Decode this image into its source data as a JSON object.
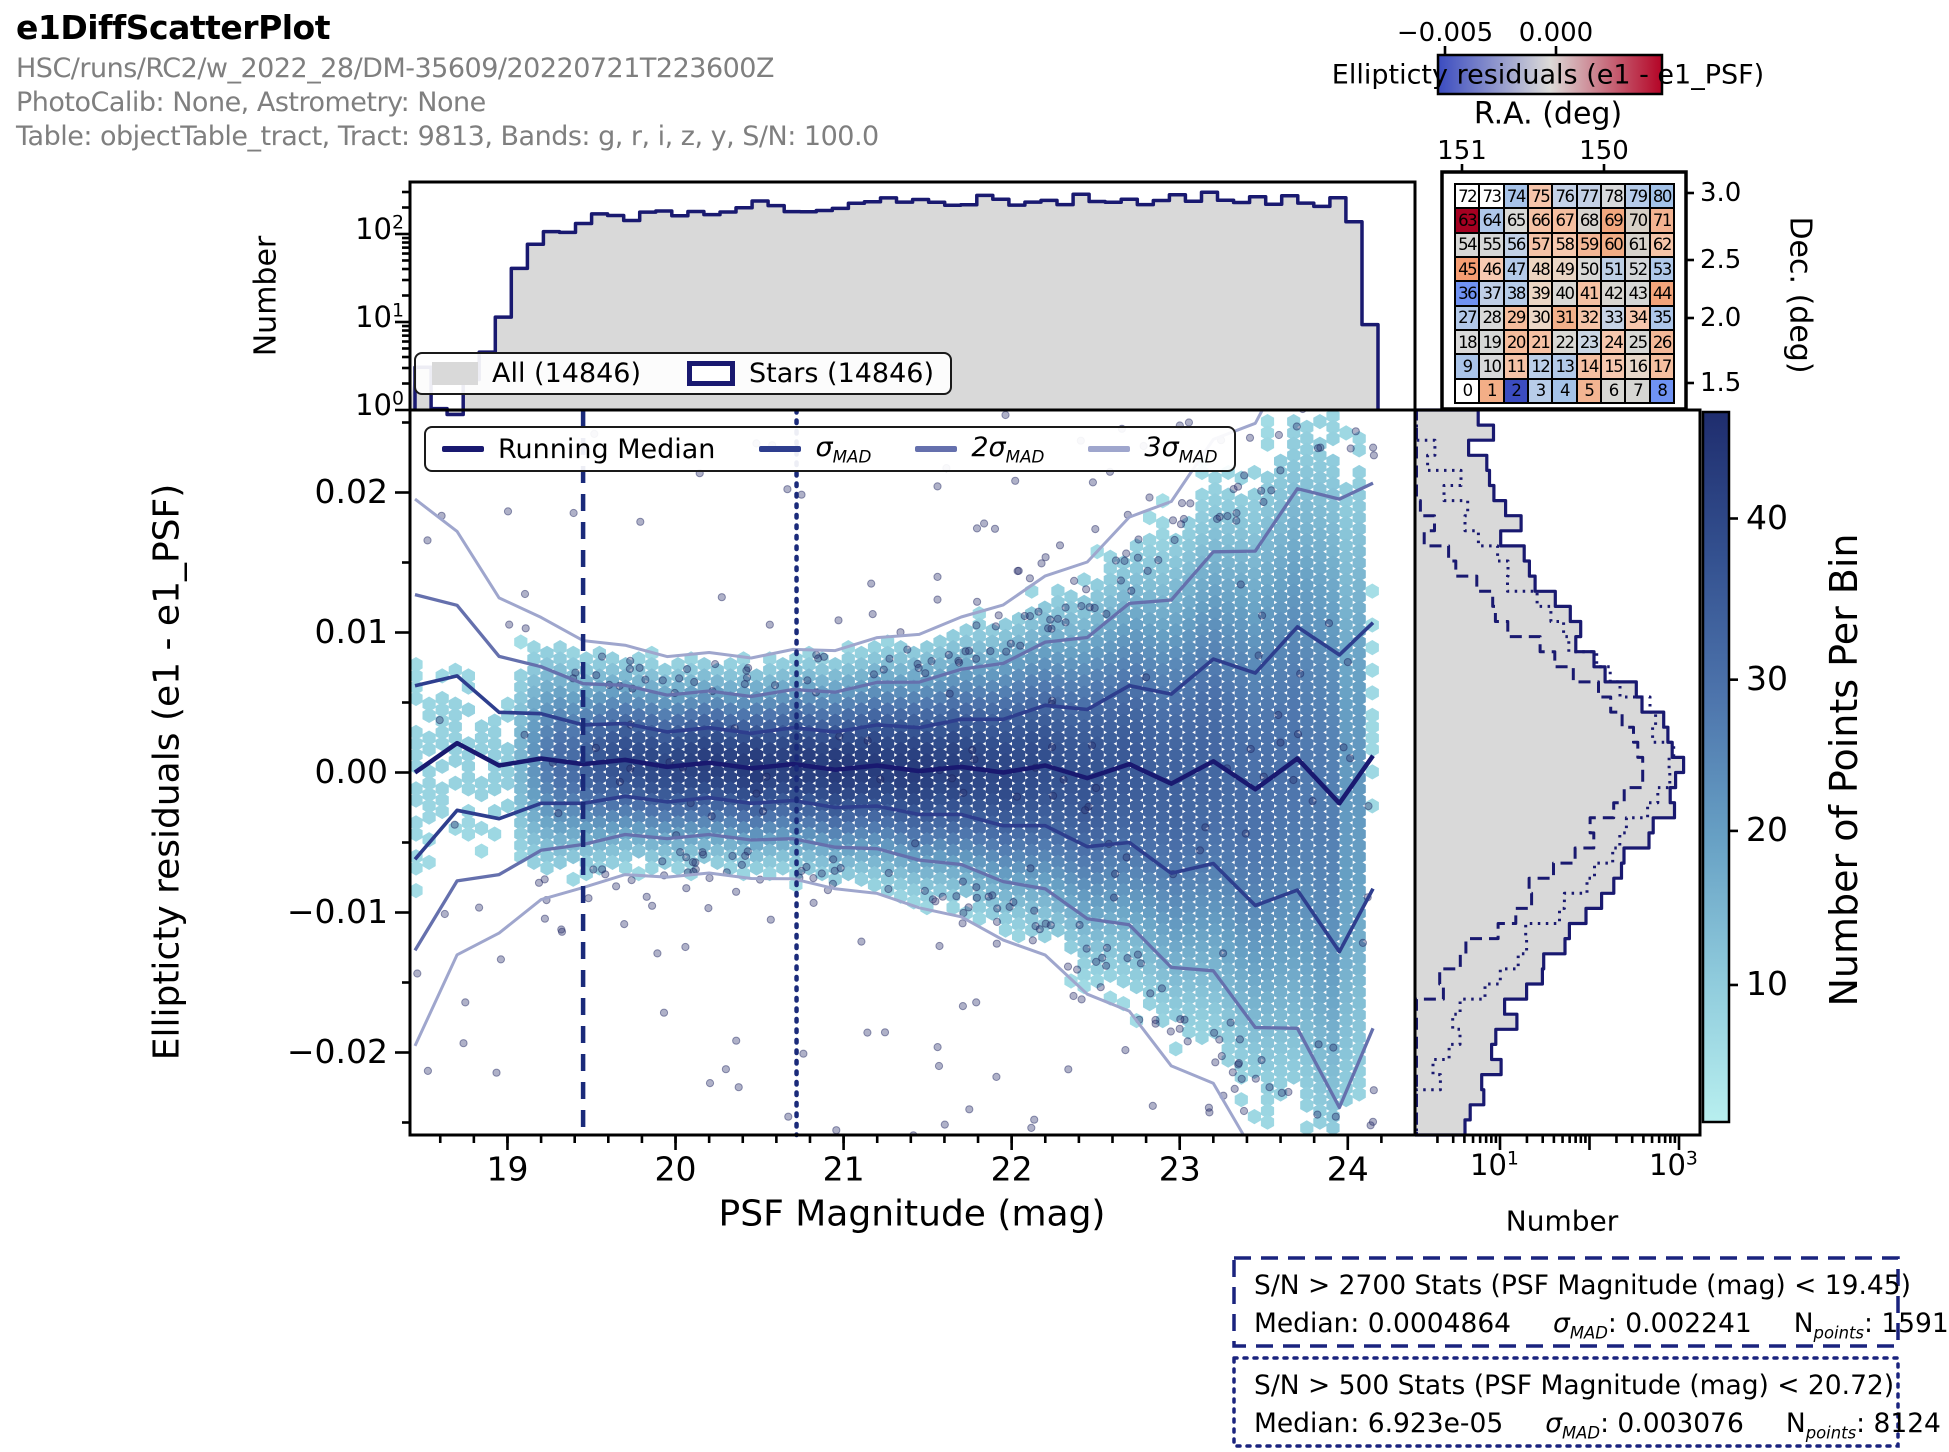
{
  "header": {
    "title": "e1DiffScatterPlot",
    "line1": "HSC/runs/RC2/w_2022_28/DM-35609/20220721T223600Z",
    "line2": "PhotoCalib: None, Astrometry: None",
    "line3": "Table: objectTable_tract, Tract: 9813, Bands: g, r, i, z, y, S/N: 100.0"
  },
  "colors": {
    "navy": "#191970",
    "sigma1": "#2e3e8e",
    "sigma2": "#6570ad",
    "sigma3": "#9fa6cd",
    "hist_fill": "#d9d9d9",
    "hex_colormap": [
      "#b8efef",
      "#8fcbdc",
      "#67a0c4",
      "#4d74ac",
      "#33508f",
      "#1f2d6e"
    ],
    "coolwarm": [
      "#3b4cc0",
      "#dcdad8",
      "#b40426"
    ]
  },
  "top_colorbar": {
    "ticks": [
      "−0.005",
      "0.000"
    ],
    "label": "Ellipticty residuals (e1 - e1_PSF)",
    "axis_label": "R.A. (deg)"
  },
  "minimap": {
    "x_ticks": [
      "151",
      "150"
    ],
    "y_ticks": [
      "3.0",
      "2.5",
      "2.0",
      "1.5"
    ],
    "y_label": "Dec. (deg)",
    "rows": [
      [
        {
          "n": "72",
          "c": "#ffffff"
        },
        {
          "n": "73",
          "c": "#ffffff"
        },
        {
          "n": "74",
          "c": "#a7c3e9"
        },
        {
          "n": "75",
          "c": "#f6c5ab"
        },
        {
          "n": "76",
          "c": "#c5d2e7"
        },
        {
          "n": "77",
          "c": "#c3d0e6"
        },
        {
          "n": "78",
          "c": "#d9dadb"
        },
        {
          "n": "79",
          "c": "#b5cbe9"
        },
        {
          "n": "80",
          "c": "#a3c2e8"
        }
      ],
      [
        {
          "n": "63",
          "c": "#a50021"
        },
        {
          "n": "64",
          "c": "#b0c8e9"
        },
        {
          "n": "65",
          "c": "#d9d9d6"
        },
        {
          "n": "66",
          "c": "#f5c2a5"
        },
        {
          "n": "67",
          "c": "#f5bfa0"
        },
        {
          "n": "68",
          "c": "#d8d4cf"
        },
        {
          "n": "69",
          "c": "#f2a77e"
        },
        {
          "n": "70",
          "c": "#d7cfc5"
        },
        {
          "n": "71",
          "c": "#f3b391"
        }
      ],
      [
        {
          "n": "54",
          "c": "#d7d7d5"
        },
        {
          "n": "55",
          "c": "#d5d7d7"
        },
        {
          "n": "56",
          "c": "#c2d1e6"
        },
        {
          "n": "57",
          "c": "#f4c2a6"
        },
        {
          "n": "58",
          "c": "#f6c8ae"
        },
        {
          "n": "59",
          "c": "#f3b695"
        },
        {
          "n": "60",
          "c": "#f1ad85"
        },
        {
          "n": "61",
          "c": "#d6d2cb"
        },
        {
          "n": "62",
          "c": "#f5c4a8"
        }
      ],
      [
        {
          "n": "45",
          "c": "#f59d72"
        },
        {
          "n": "46",
          "c": "#f7cab2"
        },
        {
          "n": "47",
          "c": "#b4cae9"
        },
        {
          "n": "48",
          "c": "#edd5c0"
        },
        {
          "n": "49",
          "c": "#ead6c5"
        },
        {
          "n": "50",
          "c": "#d9d9d8"
        },
        {
          "n": "51",
          "c": "#bed0e6"
        },
        {
          "n": "52",
          "c": "#d3d6d9"
        },
        {
          "n": "53",
          "c": "#b0c8e9"
        }
      ],
      [
        {
          "n": "36",
          "c": "#6f92f3"
        },
        {
          "n": "37",
          "c": "#c0cfe7"
        },
        {
          "n": "38",
          "c": "#b6cce9"
        },
        {
          "n": "39",
          "c": "#ecd7c4"
        },
        {
          "n": "40",
          "c": "#d9d8d5"
        },
        {
          "n": "41",
          "c": "#f5c1a3"
        },
        {
          "n": "42",
          "c": "#d8d6d1"
        },
        {
          "n": "43",
          "c": "#d5d7d6"
        },
        {
          "n": "44",
          "c": "#f3a47a"
        }
      ],
      [
        {
          "n": "27",
          "c": "#b3c9e9"
        },
        {
          "n": "28",
          "c": "#d7d8d9"
        },
        {
          "n": "29",
          "c": "#f5bd9d"
        },
        {
          "n": "30",
          "c": "#ebd7c6"
        },
        {
          "n": "31",
          "c": "#f2b08a"
        },
        {
          "n": "32",
          "c": "#f5c3a7"
        },
        {
          "n": "33",
          "c": "#c6d3e6"
        },
        {
          "n": "34",
          "c": "#f6c6ac"
        },
        {
          "n": "35",
          "c": "#adc6e9"
        }
      ],
      [
        {
          "n": "18",
          "c": "#d9d9d9"
        },
        {
          "n": "19",
          "c": "#d5d7d6"
        },
        {
          "n": "20",
          "c": "#f5bc9b"
        },
        {
          "n": "21",
          "c": "#f5c1a4"
        },
        {
          "n": "22",
          "c": "#d9d8d4"
        },
        {
          "n": "23",
          "c": "#cad5e4"
        },
        {
          "n": "24",
          "c": "#f6c6ad"
        },
        {
          "n": "25",
          "c": "#d7d7d4"
        },
        {
          "n": "26",
          "c": "#f3b897"
        }
      ],
      [
        {
          "n": "9",
          "c": "#aac4e9"
        },
        {
          "n": "10",
          "c": "#d7d8da"
        },
        {
          "n": "11",
          "c": "#f5c3a7"
        },
        {
          "n": "12",
          "c": "#bbcee8"
        },
        {
          "n": "13",
          "c": "#b3cae9"
        },
        {
          "n": "14",
          "c": "#f5c0a2"
        },
        {
          "n": "15",
          "c": "#f6c8af"
        },
        {
          "n": "16",
          "c": "#e7d7c9"
        },
        {
          "n": "17",
          "c": "#f5bf9f"
        }
      ],
      [
        {
          "n": "0",
          "c": "#ffffff"
        },
        {
          "n": "1",
          "c": "#f3ae87"
        },
        {
          "n": "2",
          "c": "#3b4cc0"
        },
        {
          "n": "3",
          "c": "#b8cde9"
        },
        {
          "n": "4",
          "c": "#a5c3e9"
        },
        {
          "n": "5",
          "c": "#f3b592"
        },
        {
          "n": "6",
          "c": "#d8d8d4"
        },
        {
          "n": "7",
          "c": "#d6d6d3"
        },
        {
          "n": "8",
          "c": "#6f92f3"
        }
      ]
    ]
  },
  "top_hist": {
    "y_label": "Number",
    "y_ticks": [
      {
        "b": "10",
        "e": "2"
      },
      {
        "b": "10",
        "e": "1"
      },
      {
        "b": "10",
        "e": "0"
      }
    ],
    "legend": [
      {
        "label": "All (14846)"
      },
      {
        "label": "Stars (14846)"
      }
    ]
  },
  "main_plot": {
    "y_label": "Ellipticty residuals (e1 - e1_PSF)",
    "x_label": "PSF Magnitude (mag)",
    "x_ticks": [
      "19",
      "20",
      "21",
      "22",
      "23",
      "24"
    ],
    "y_ticks": [
      "0.02",
      "0.01",
      "0.00",
      "−0.01",
      "−0.02"
    ],
    "legend": [
      {
        "base": "Running Median",
        "sub": ""
      },
      {
        "base": "σ",
        "sub": "MAD"
      },
      {
        "base": "2σ",
        "sub": "MAD"
      },
      {
        "base": "3σ",
        "sub": "MAD"
      }
    ]
  },
  "side_hist": {
    "x_label": "Number",
    "x_ticks": [
      {
        "b": "10",
        "e": "1"
      },
      {
        "b": "10",
        "e": "3"
      }
    ]
  },
  "colorbar": {
    "label": "Number of Points Per Bin",
    "ticks": [
      "40",
      "30",
      "20",
      "10"
    ]
  },
  "stats_boxes": [
    {
      "line1": "S/N > 2700 Stats (PSF Magnitude (mag) < 19.45)",
      "median": "Median: 0.0004864",
      "sigma_sym": "σ",
      "sigma_sub": "MAD",
      "sigma_val": ": 0.002241",
      "n_sym": "N",
      "n_sub": "points",
      "n_val": ": 1591"
    },
    {
      "line1": "S/N > 500 Stats (PSF Magnitude (mag) < 20.72)",
      "median": "Median: 6.923e-05",
      "sigma_sym": "σ",
      "sigma_sub": "MAD",
      "sigma_val": ": 0.003076",
      "n_sym": "N",
      "n_sub": "points",
      "n_val": ": 8124"
    }
  ],
  "chart_data": {
    "type": "scatter",
    "title": "e1DiffScatterPlot",
    "xlabel": "PSF Magnitude (mag)",
    "ylabel": "Ellipticty residuals (e1 - e1_PSF)",
    "xlim": [
      18.42,
      24.4
    ],
    "ylim": [
      -0.0259,
      0.0259
    ],
    "n_all": 14846,
    "n_stars": 14846,
    "vlines": [
      {
        "x": 19.45,
        "style": "dashed",
        "meaning": "S/N > 2700 magnitude cut"
      },
      {
        "x": 20.72,
        "style": "dotted",
        "meaning": "S/N > 500 magnitude cut"
      }
    ],
    "running_median": {
      "mags": [
        18.45,
        18.7,
        18.95,
        19.2,
        19.45,
        19.7,
        19.95,
        20.2,
        20.45,
        20.7,
        20.95,
        21.2,
        21.45,
        21.7,
        21.95,
        22.2,
        22.45,
        22.7,
        22.95,
        23.2,
        23.45,
        23.7,
        23.95,
        24.15
      ],
      "median": [
        0.0,
        0.0021,
        0.0005,
        0.001,
        0.0006,
        0.0009,
        0.0004,
        0.0007,
        0.0003,
        0.0006,
        0.0002,
        0.0005,
        0.0001,
        0.0004,
        0.0,
        0.0005,
        -0.0004,
        0.0006,
        -0.0008,
        0.0008,
        -0.0012,
        0.001,
        -0.0022,
        0.0012
      ],
      "sigma_mad": [
        0.0062,
        0.0048,
        0.0038,
        0.0032,
        0.0028,
        0.0026,
        0.0025,
        0.0025,
        0.0025,
        0.0026,
        0.0027,
        0.0029,
        0.0031,
        0.0034,
        0.0038,
        0.0043,
        0.0049,
        0.0056,
        0.0064,
        0.0073,
        0.0083,
        0.0094,
        0.0106,
        0.0095
      ],
      "sigma2_mult": 2.05,
      "sigma3_mult": 3.15
    },
    "top_histogram": {
      "type": "bar",
      "yscale": "log",
      "x0": 18.45,
      "bin_width": 0.0955,
      "counts": [
        3,
        1,
        1,
        2,
        5,
        12,
        35,
        70,
        100,
        120,
        135,
        150,
        160,
        170,
        178,
        172,
        182,
        188,
        196,
        190,
        200,
        207,
        196,
        214,
        208,
        204,
        220,
        214,
        224,
        218,
        228,
        234,
        224,
        240,
        230,
        234,
        244,
        238,
        248,
        242,
        238,
        248,
        252,
        242,
        252,
        246,
        242,
        252,
        246,
        256,
        248,
        252,
        244,
        248,
        252,
        238,
        242,
        232,
        150,
        10
      ]
    },
    "side_histogram": {
      "type": "bar",
      "orientation": "horizontal",
      "xscale": "log",
      "y_top": 0.0259,
      "y_bottom": -0.0259,
      "series": [
        {
          "name": "All",
          "style": "solid",
          "counts": [
            5,
            7,
            6,
            8,
            10,
            9,
            12,
            14,
            13,
            18,
            22,
            28,
            35,
            50,
            70,
            95,
            130,
            180,
            260,
            380,
            520,
            700,
            880,
            1020,
            1050,
            900,
            720,
            560,
            400,
            280,
            200,
            150,
            110,
            80,
            60,
            45,
            34,
            26,
            20,
            16,
            12,
            10,
            9,
            8,
            7,
            6,
            6,
            5
          ]
        },
        {
          "name": "S/N > 500",
          "style": "dotted",
          "counts": [
            1,
            1,
            2,
            2,
            3,
            3,
            4,
            5,
            6,
            8,
            10,
            14,
            20,
            30,
            45,
            70,
            110,
            170,
            260,
            380,
            500,
            620,
            700,
            730,
            700,
            600,
            470,
            350,
            250,
            170,
            115,
            78,
            52,
            36,
            25,
            18,
            13,
            9,
            7,
            5,
            4,
            3,
            3,
            2,
            2,
            1,
            1,
            1
          ]
        },
        {
          "name": "S/N > 2700",
          "style": "dashed",
          "counts": [
            0,
            0,
            0,
            1,
            1,
            1,
            1,
            2,
            2,
            3,
            4,
            5,
            7,
            10,
            15,
            24,
            38,
            62,
            100,
            155,
            220,
            280,
            320,
            335,
            310,
            260,
            200,
            145,
            100,
            66,
            43,
            28,
            18,
            12,
            8,
            5,
            4,
            3,
            2,
            1,
            1,
            1,
            1,
            0,
            0,
            0,
            0,
            0
          ]
        }
      ]
    },
    "hexbin": {
      "max_per_bin": 45,
      "colorbar_ticks": [
        10,
        20,
        30,
        40
      ]
    },
    "stats": [
      {
        "subset": "S/N > 2700",
        "cut": "PSF Magnitude (mag) < 19.45",
        "median": 0.0004864,
        "sigma_mad": 0.002241,
        "n_points": 1591
      },
      {
        "subset": "S/N > 500",
        "cut": "PSF Magnitude (mag) < 20.72",
        "median": 6.923e-05,
        "sigma_mad": 0.003076,
        "n_points": 8124
      }
    ],
    "minimap": {
      "ra_ticks_deg": [
        151,
        150
      ],
      "dec_ticks_deg": [
        3.0,
        2.5,
        2.0,
        1.5
      ],
      "patch_numbers": "0-80"
    }
  }
}
